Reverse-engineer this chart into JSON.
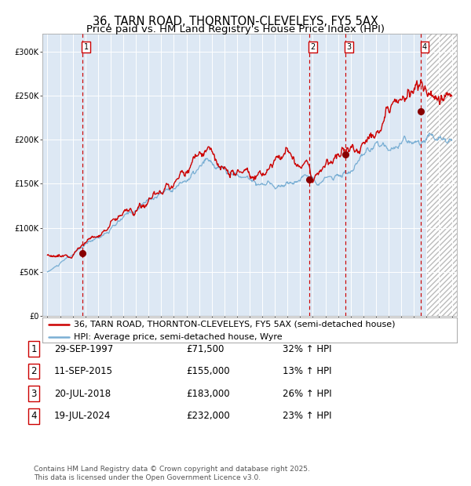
{
  "title": "36, TARN ROAD, THORNTON-CLEVELEYS, FY5 5AX",
  "subtitle": "Price paid vs. HM Land Registry's House Price Index (HPI)",
  "legend_line1": "36, TARN ROAD, THORNTON-CLEVELEYS, FY5 5AX (semi-detached house)",
  "legend_line2": "HPI: Average price, semi-detached house, Wyre",
  "footer": "Contains HM Land Registry data © Crown copyright and database right 2025.\nThis data is licensed under the Open Government Licence v3.0.",
  "sale_dates": [
    1997.747,
    2015.692,
    2018.554,
    2024.543
  ],
  "sale_prices": [
    71500,
    155000,
    183000,
    232000
  ],
  "sale_labels": [
    "1",
    "2",
    "3",
    "4"
  ],
  "table_rows": [
    [
      "1",
      "29-SEP-1997",
      "£71,500",
      "32% ↑ HPI"
    ],
    [
      "2",
      "11-SEP-2015",
      "£155,000",
      "13% ↑ HPI"
    ],
    [
      "3",
      "20-JUL-2018",
      "£183,000",
      "26% ↑ HPI"
    ],
    [
      "4",
      "19-JUL-2024",
      "£232,000",
      "23% ↑ HPI"
    ]
  ],
  "ylim": [
    0,
    320000
  ],
  "xlim_start": 1994.6,
  "xlim_end": 2027.4,
  "chart_bg": "#dde8f4",
  "red_line_color": "#cc0000",
  "blue_line_color": "#7aafd4",
  "sale_dot_color": "#880000",
  "dashed_line_color": "#cc0000",
  "title_fontsize": 10.5,
  "subtitle_fontsize": 9.5,
  "tick_fontsize": 7,
  "legend_fontsize": 8,
  "table_fontsize": 8.5,
  "footer_fontsize": 6.5
}
